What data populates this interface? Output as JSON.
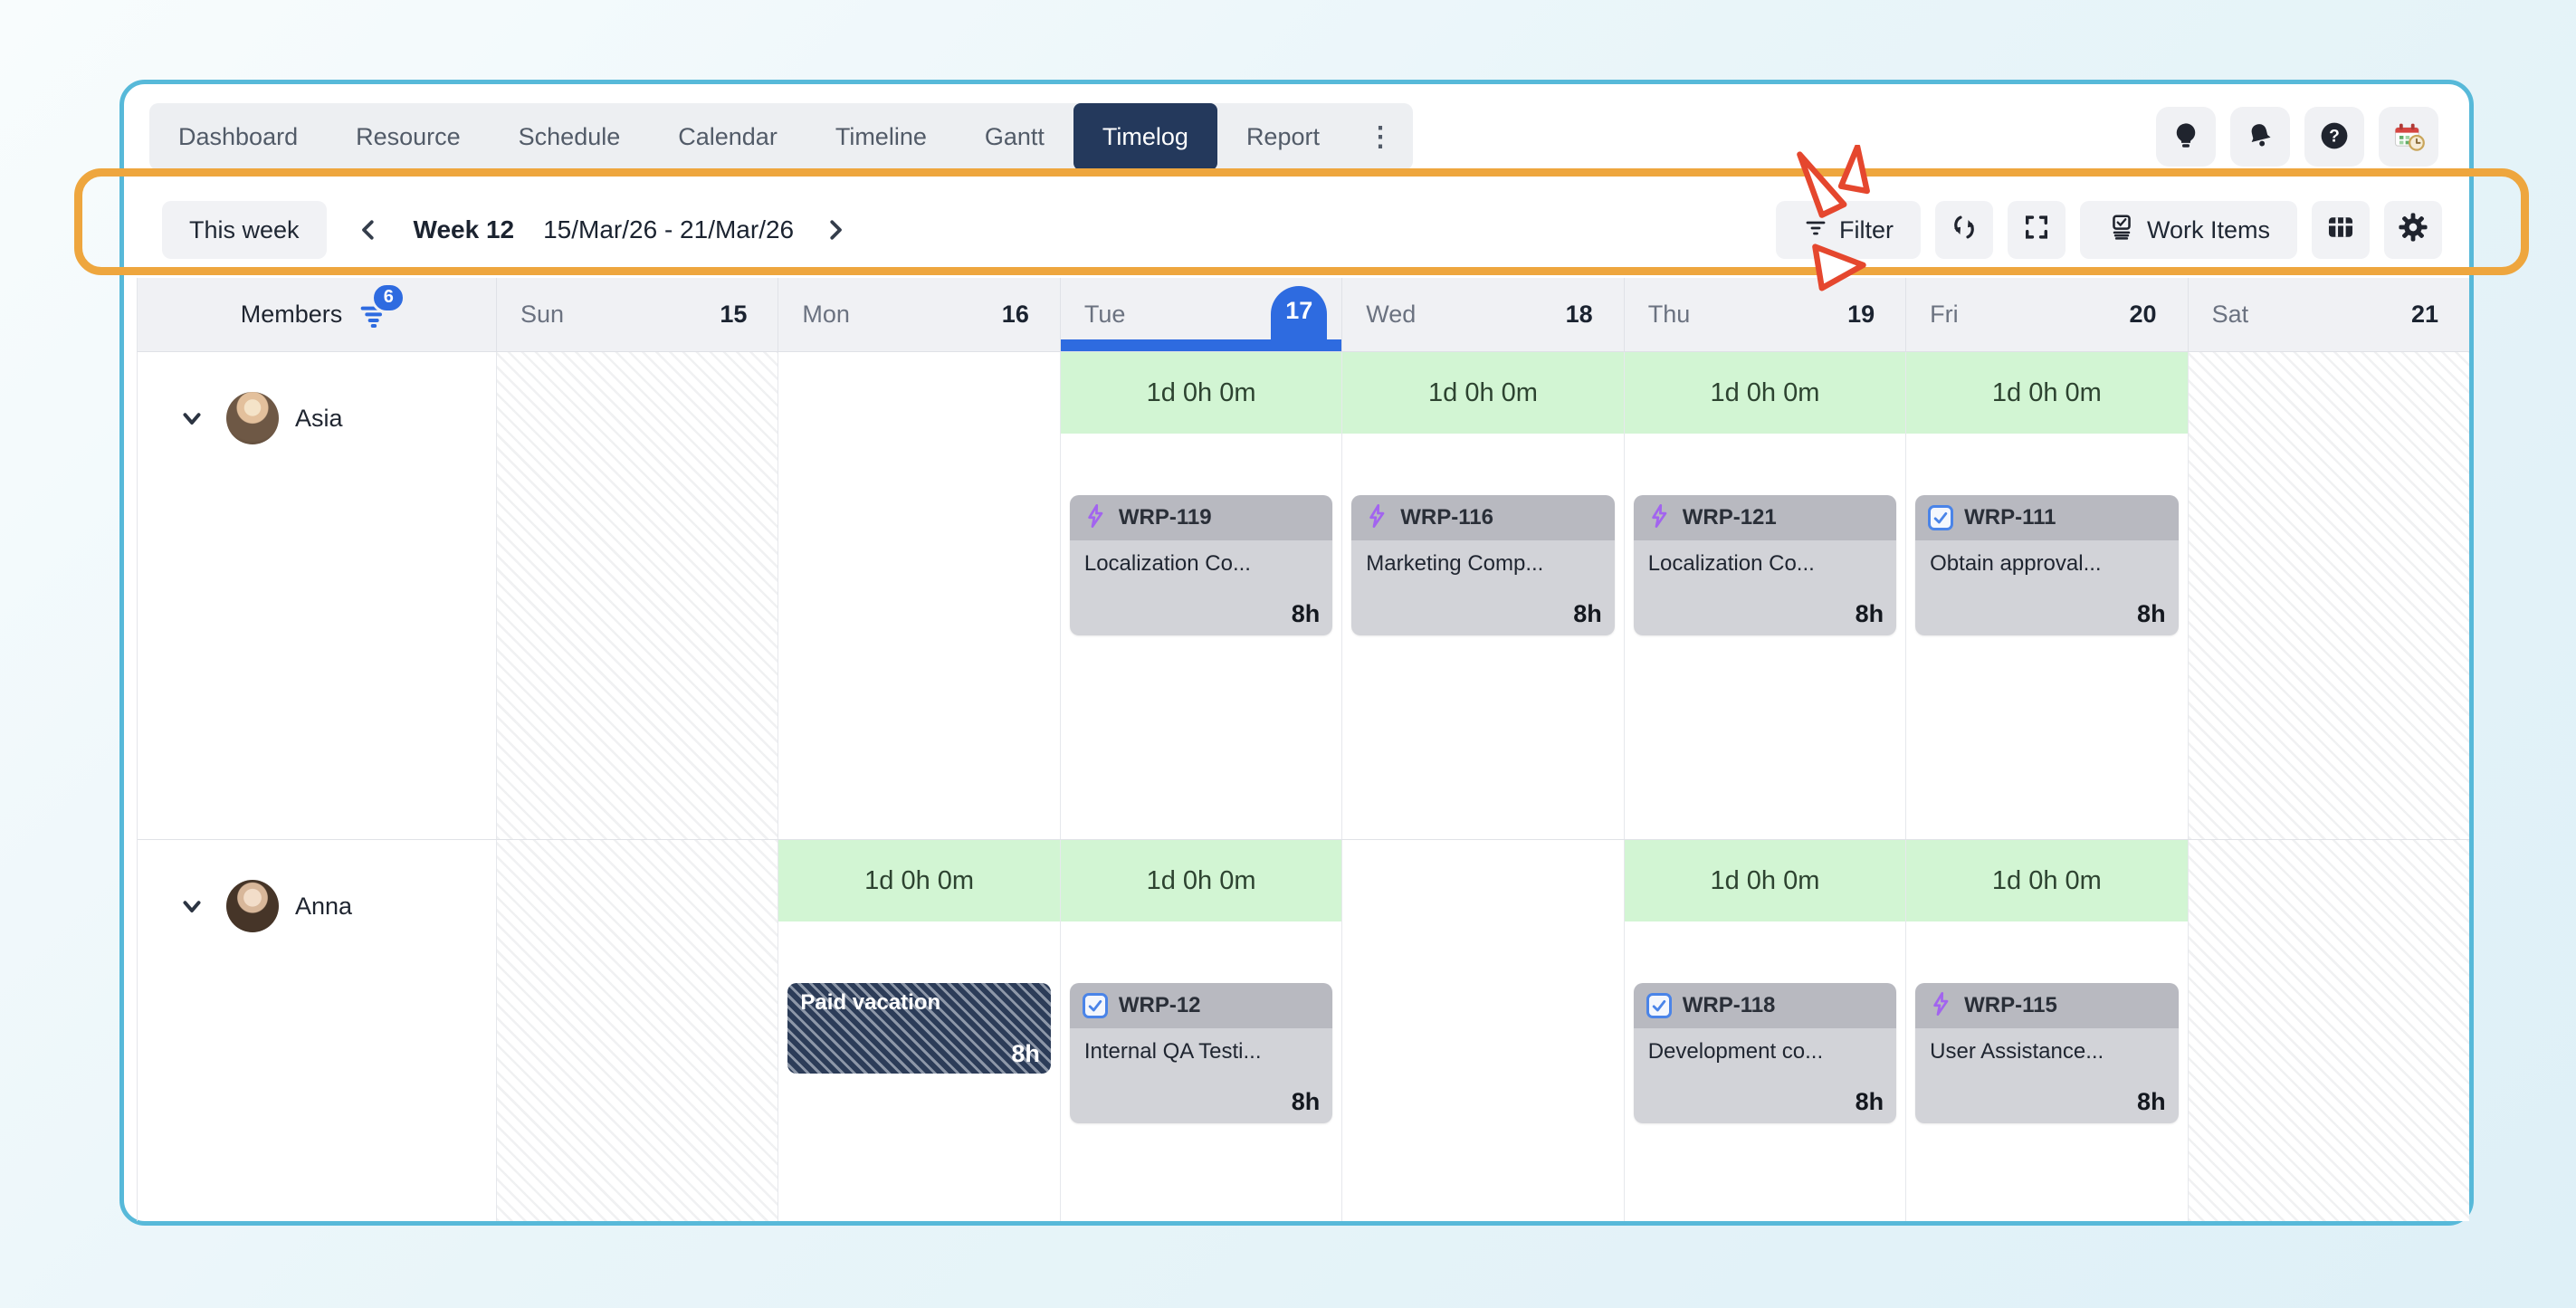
{
  "nav": {
    "tabs": [
      {
        "label": "Dashboard",
        "active": false
      },
      {
        "label": "Resource",
        "active": false
      },
      {
        "label": "Schedule",
        "active": false
      },
      {
        "label": "Calendar",
        "active": false
      },
      {
        "label": "Timeline",
        "active": false
      },
      {
        "label": "Gantt",
        "active": false
      },
      {
        "label": "Timelog",
        "active": true
      },
      {
        "label": "Report",
        "active": false
      }
    ],
    "more_label": "⋮"
  },
  "header_icons": [
    "idea-icon",
    "notifications-icon",
    "help-icon",
    "calendar-clock-icon"
  ],
  "toolbar": {
    "this_week_label": "This week",
    "week_label": "Week 12",
    "date_range": "15/Mar/26 - 21/Mar/26",
    "filter_label": "Filter",
    "work_items_label": "Work Items"
  },
  "grid": {
    "members_label": "Members",
    "members_filter_count": "6",
    "days": [
      {
        "name": "Sun",
        "date": "15",
        "weekend": true,
        "selected": false
      },
      {
        "name": "Mon",
        "date": "16",
        "weekend": false,
        "selected": false
      },
      {
        "name": "Tue",
        "date": "17",
        "weekend": false,
        "selected": true
      },
      {
        "name": "Wed",
        "date": "18",
        "weekend": false,
        "selected": false
      },
      {
        "name": "Thu",
        "date": "19",
        "weekend": false,
        "selected": false
      },
      {
        "name": "Fri",
        "date": "20",
        "weekend": false,
        "selected": false
      },
      {
        "name": "Sat",
        "date": "21",
        "weekend": true,
        "selected": false
      }
    ]
  },
  "rows": [
    {
      "member": "Asia",
      "entries": [
        {
          "day": "Tue",
          "total": "1d 0h 0m",
          "card": {
            "type": "task",
            "icon": "bolt",
            "id": "WRP-119",
            "title": "Localization Co...",
            "hours": "8h"
          }
        },
        {
          "day": "Wed",
          "total": "1d 0h 0m",
          "card": {
            "type": "task",
            "icon": "bolt",
            "id": "WRP-116",
            "title": "Marketing Comp...",
            "hours": "8h"
          }
        },
        {
          "day": "Thu",
          "total": "1d 0h 0m",
          "card": {
            "type": "task",
            "icon": "bolt",
            "id": "WRP-121",
            "title": "Localization Co...",
            "hours": "8h"
          }
        },
        {
          "day": "Fri",
          "total": "1d 0h 0m",
          "card": {
            "type": "task",
            "icon": "check",
            "id": "WRP-111",
            "title": "Obtain approval...",
            "hours": "8h"
          }
        }
      ]
    },
    {
      "member": "Anna",
      "entries": [
        {
          "day": "Mon",
          "total": "1d 0h 0m",
          "card": {
            "type": "vacation",
            "title": "Paid vacation",
            "hours": "8h"
          }
        },
        {
          "day": "Tue",
          "total": "1d 0h 0m",
          "card": {
            "type": "task",
            "icon": "check",
            "id": "WRP-12",
            "title": "Internal QA Testi...",
            "hours": "8h"
          }
        },
        {
          "day": "Thu",
          "total": "1d 0h 0m",
          "card": {
            "type": "task",
            "icon": "check",
            "id": "WRP-118",
            "title": "Development co...",
            "hours": "8h"
          }
        },
        {
          "day": "Fri",
          "total": "1d 0h 0m",
          "card": {
            "type": "task",
            "icon": "bolt",
            "id": "WRP-115",
            "title": "User Assistance...",
            "hours": "8h"
          }
        }
      ]
    }
  ],
  "colors": {
    "accent_blue": "#2e6be0",
    "selected_tab_navy": "#24395c",
    "frame_border_cyan": "#57b9d9",
    "annotation_orange": "#eea63e",
    "annotation_red": "#e5472e",
    "total_green": "#d2f5d3",
    "card_header_gray": "#b8b9c0",
    "card_body_gray": "#d2d3d8",
    "vacation_navy": "#2c3c58",
    "task_bolt_purple": "#a264ef",
    "task_check_blue": "#4a84e8"
  }
}
